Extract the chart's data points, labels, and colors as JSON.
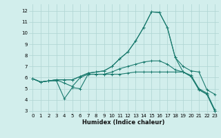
{
  "xlabel": "Humidex (Indice chaleur)",
  "bg_color": "#d2eeec",
  "grid_color": "#aed4d2",
  "line_color": "#1a7a6e",
  "xlim": [
    -0.5,
    23.5
  ],
  "ylim": [
    2.8,
    12.6
  ],
  "xticks": [
    0,
    1,
    2,
    3,
    4,
    5,
    6,
    7,
    8,
    9,
    10,
    11,
    12,
    13,
    14,
    15,
    16,
    17,
    18,
    19,
    20,
    21,
    22,
    23
  ],
  "yticks": [
    3,
    4,
    5,
    6,
    7,
    8,
    9,
    10,
    11,
    12
  ],
  "series": [
    {
      "x": [
        0,
        1,
        2,
        3,
        4,
        5,
        6,
        7,
        8,
        9,
        10,
        11,
        12,
        13,
        14,
        15,
        16,
        17,
        18,
        19,
        20,
        21,
        22,
        23
      ],
      "y": [
        5.9,
        5.6,
        5.7,
        5.7,
        4.1,
        5.1,
        5.0,
        6.3,
        6.3,
        6.3,
        6.3,
        6.3,
        6.4,
        6.5,
        6.5,
        6.5,
        6.5,
        6.5,
        6.5,
        6.5,
        6.1,
        4.9,
        4.5,
        3.0
      ]
    },
    {
      "x": [
        0,
        1,
        2,
        3,
        4,
        5,
        6,
        7,
        8,
        9,
        10,
        11,
        12,
        13,
        14,
        15,
        16,
        17,
        18,
        19,
        20,
        21,
        22,
        23
      ],
      "y": [
        5.9,
        5.6,
        5.7,
        5.8,
        5.8,
        5.8,
        6.1,
        6.4,
        6.5,
        6.6,
        7.0,
        7.7,
        8.3,
        9.3,
        10.5,
        11.9,
        11.85,
        10.5,
        7.8,
        7.0,
        6.6,
        6.5,
        4.9,
        4.5
      ]
    },
    {
      "x": [
        0,
        1,
        2,
        3,
        4,
        5,
        6,
        7,
        8,
        9,
        10,
        11,
        12,
        13,
        14,
        15,
        16,
        17,
        18,
        19,
        20,
        21,
        22,
        23
      ],
      "y": [
        5.9,
        5.6,
        5.7,
        5.8,
        5.8,
        5.8,
        6.1,
        6.4,
        6.5,
        6.6,
        7.0,
        7.7,
        8.3,
        9.3,
        10.5,
        11.9,
        11.85,
        10.5,
        7.8,
        6.5,
        6.1,
        4.9,
        4.5,
        3.0
      ]
    },
    {
      "x": [
        0,
        1,
        2,
        3,
        4,
        5,
        6,
        7,
        8,
        9,
        10,
        11,
        12,
        13,
        14,
        15,
        16,
        17,
        18,
        19,
        20,
        21,
        22,
        23
      ],
      "y": [
        5.9,
        5.6,
        5.7,
        5.8,
        5.5,
        5.2,
        6.0,
        6.3,
        6.3,
        6.3,
        6.5,
        6.8,
        7.0,
        7.2,
        7.4,
        7.5,
        7.5,
        7.2,
        6.7,
        6.5,
        6.2,
        5.0,
        4.6,
        3.1
      ]
    }
  ]
}
